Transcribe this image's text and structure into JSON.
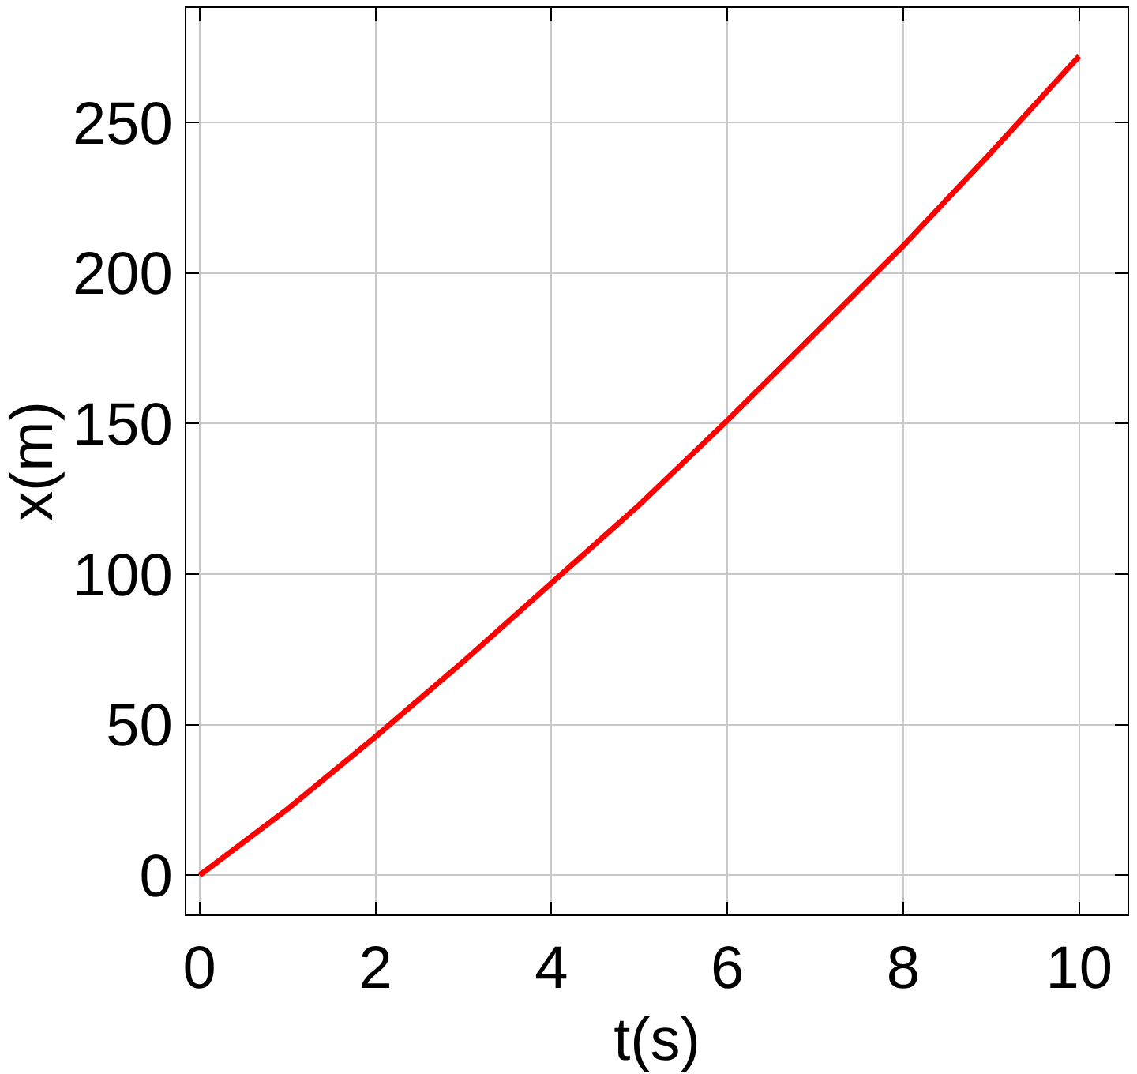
{
  "chart_data": {
    "type": "line",
    "xlabel": "t(s)",
    "ylabel": "x(m)",
    "x": [
      0,
      1,
      2,
      3,
      4,
      5,
      6,
      7,
      8,
      9,
      10
    ],
    "series": [
      {
        "color": "#ff0000",
        "values": [
          0,
          22,
          46,
          71,
          97,
          123,
          151,
          180,
          209,
          240,
          272
        ]
      }
    ],
    "xlim": [
      -0.15,
      10.55
    ],
    "ylim": [
      -13,
      288
    ],
    "xticks": [
      0,
      2,
      4,
      6,
      8,
      10
    ],
    "yticks": [
      0,
      50,
      100,
      150,
      200,
      250
    ],
    "grid": true,
    "marker": "none",
    "line_style": "solid"
  }
}
